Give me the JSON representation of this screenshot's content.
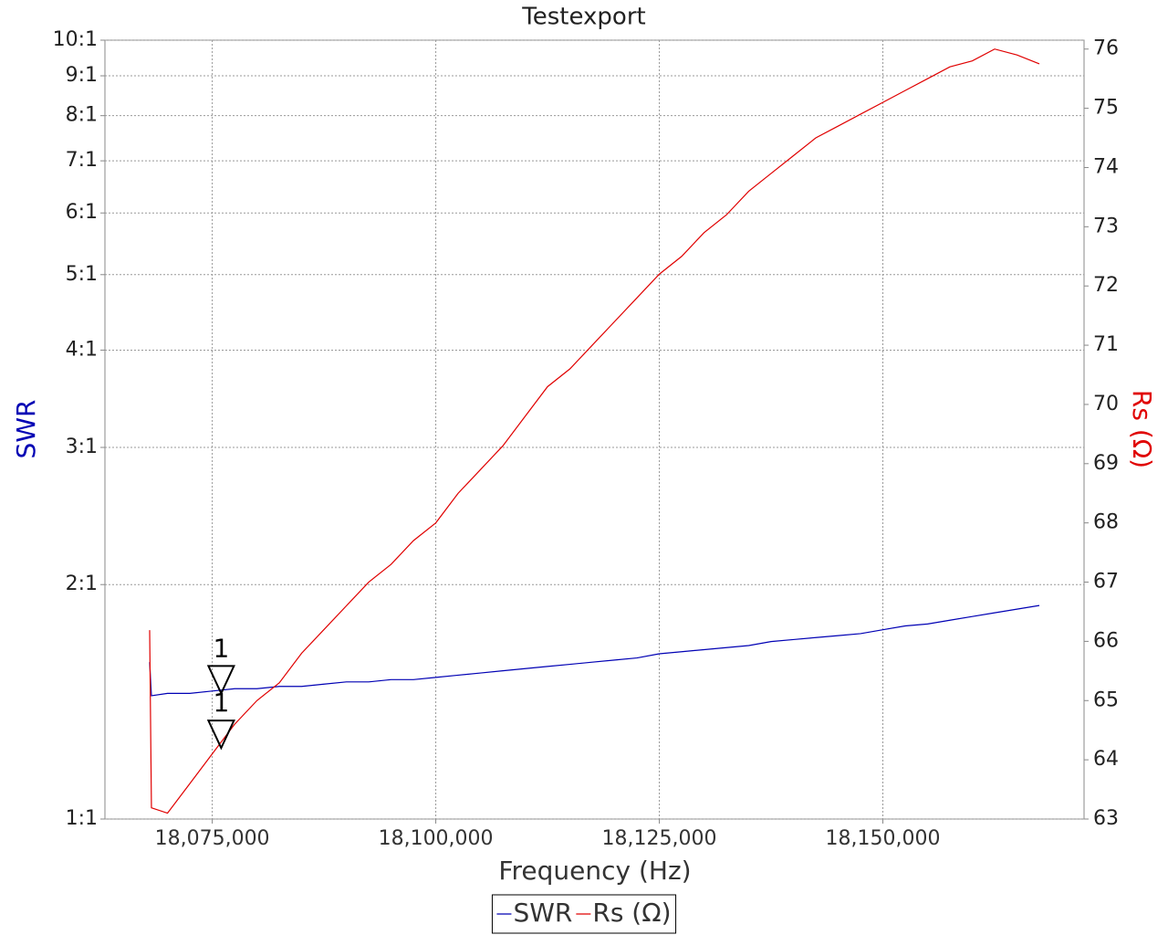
{
  "chart_data": {
    "type": "line",
    "title": "Testexport",
    "x_label": "Frequency (Hz)",
    "y_label": "SWR",
    "y2_label": "Rs (Ω)",
    "xlim": [
      18063000,
      18172500
    ],
    "xticks": [
      {
        "value": 18075000,
        "label": "18,075,000"
      },
      {
        "value": 18100000,
        "label": "18,100,000"
      },
      {
        "value": 18125000,
        "label": "18,125,000"
      },
      {
        "value": 18150000,
        "label": "18,150,000"
      }
    ],
    "ylim": [
      1,
      10
    ],
    "y_scale": "log",
    "yticks": [
      {
        "value": 1,
        "label": "1:1"
      },
      {
        "value": 2,
        "label": "2:1"
      },
      {
        "value": 3,
        "label": "3:1"
      },
      {
        "value": 4,
        "label": "4:1"
      },
      {
        "value": 5,
        "label": "5:1"
      },
      {
        "value": 6,
        "label": "6:1"
      },
      {
        "value": 7,
        "label": "7:1"
      },
      {
        "value": 8,
        "label": "8:1"
      },
      {
        "value": 9,
        "label": "9:1"
      },
      {
        "value": 10,
        "label": "10:1"
      }
    ],
    "y2lim": [
      63,
      76.15
    ],
    "y2ticks": [
      63,
      64,
      65,
      66,
      67,
      68,
      69,
      70,
      71,
      72,
      73,
      74,
      75,
      76
    ],
    "grid": true,
    "legend": "bottom",
    "x": [
      18068000,
      18068200,
      18070000,
      18072500,
      18075000,
      18077500,
      18080000,
      18082500,
      18085000,
      18087500,
      18090000,
      18092500,
      18095000,
      18097500,
      18100000,
      18102500,
      18105000,
      18107500,
      18110000,
      18112500,
      18115000,
      18117500,
      18120000,
      18122500,
      18125000,
      18127500,
      18130000,
      18132500,
      18135000,
      18137500,
      18140000,
      18142500,
      18145000,
      18147500,
      18150000,
      18152500,
      18155000,
      18157500,
      18160000,
      18162500,
      18165000,
      18167500
    ],
    "series": [
      {
        "name": "SWR",
        "color": "#0000b4",
        "values": [
          1.59,
          1.44,
          1.45,
          1.45,
          1.46,
          1.47,
          1.47,
          1.48,
          1.48,
          1.49,
          1.5,
          1.5,
          1.51,
          1.51,
          1.52,
          1.53,
          1.54,
          1.55,
          1.56,
          1.57,
          1.58,
          1.59,
          1.6,
          1.61,
          1.63,
          1.64,
          1.65,
          1.66,
          1.67,
          1.69,
          1.7,
          1.71,
          1.72,
          1.73,
          1.75,
          1.77,
          1.78,
          1.8,
          1.82,
          1.84,
          1.86,
          1.88
        ]
      },
      {
        "name": "Rs (Ω)",
        "color": "#e00000",
        "axis": "y2",
        "values": [
          66.19,
          63.19,
          63.1,
          63.6,
          64.1,
          64.6,
          65.0,
          65.3,
          65.8,
          66.2,
          66.6,
          67.0,
          67.3,
          67.7,
          68.0,
          68.5,
          68.9,
          69.3,
          69.8,
          70.3,
          70.6,
          71.0,
          71.4,
          71.8,
          72.2,
          72.5,
          72.9,
          73.2,
          73.6,
          73.9,
          74.2,
          74.5,
          74.7,
          74.9,
          75.1,
          75.3,
          75.5,
          75.7,
          75.8,
          76.0,
          75.9,
          75.75
        ]
      }
    ],
    "markers": [
      {
        "label": "1",
        "x": 18076000,
        "value": 1.45
      },
      {
        "label": "1",
        "x": 18076000,
        "value": 64.2,
        "axis": "y2"
      }
    ]
  }
}
